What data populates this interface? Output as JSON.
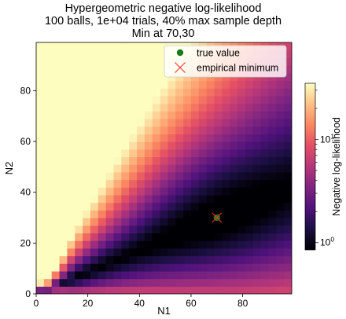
{
  "chart_data": {
    "type": "heatmap",
    "title": [
      "Hypergeometric negative log-likelihood",
      "100 balls, 1e+04 trials, 40% max sample depth",
      "Min at 70,30"
    ],
    "xlabel": "N1",
    "ylabel": "N2",
    "xlim": [
      0,
      99
    ],
    "ylim": [
      0,
      99
    ],
    "xticks": [
      0,
      20,
      40,
      60,
      80
    ],
    "yticks": [
      0,
      20,
      40,
      60,
      80
    ],
    "colormap": "magma",
    "color_scale": "log",
    "colorbar": {
      "label": "Negative log-likelihood",
      "range": [
        0.85,
        35
      ],
      "major_ticks": [
        "10^0",
        "10^1"
      ],
      "major_values": [
        1,
        10
      ]
    },
    "markers": [
      {
        "label": "true value",
        "x": 70,
        "y": 30,
        "color": "#1a7a1a",
        "shape": "circle"
      },
      {
        "label": "empirical minimum",
        "x": 70,
        "y": 30,
        "color": "#ff2a2a",
        "shape": "x"
      }
    ],
    "legend": {
      "position": "top-right",
      "items": [
        "true value",
        "empirical minimum"
      ]
    }
  }
}
